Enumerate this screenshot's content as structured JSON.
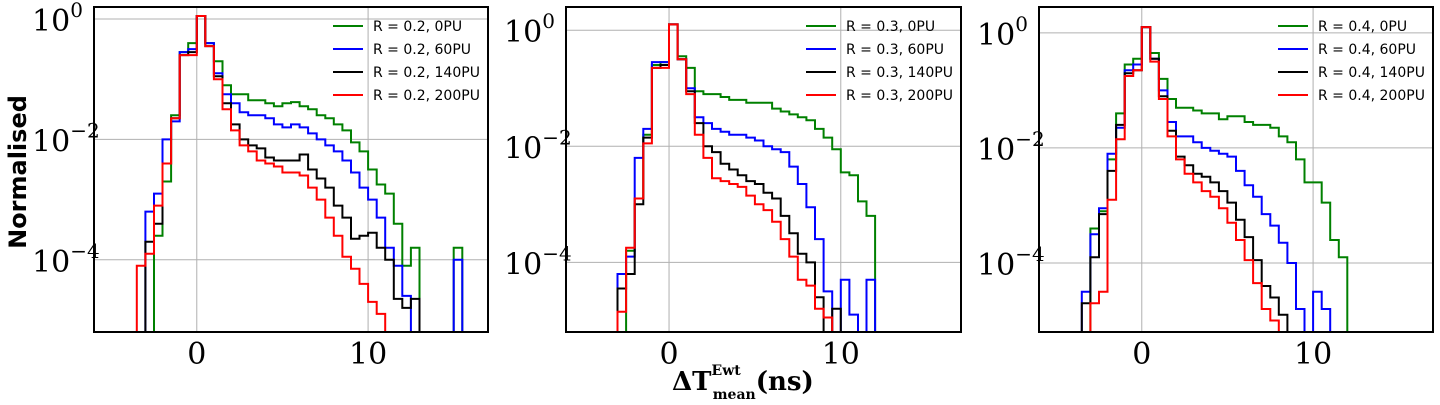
{
  "figure": {
    "ylabel": "Normalised",
    "xlabel": {
      "base": "ΔT",
      "sup": "Ewt",
      "sub": "mean",
      "unit": "(ns)"
    }
  },
  "chart_data": [
    {
      "type": "line",
      "title": "",
      "xlim": [
        -6,
        17
      ],
      "ylim_log10": [
        -5.2,
        0.2
      ],
      "xticks": [
        0,
        10
      ],
      "xtick_labels": [
        "0",
        "10"
      ],
      "yticks": [
        {
          "base": "10",
          "exp": "0",
          "log10": 0
        },
        {
          "base": "10",
          "exp": "−2",
          "log10": -2
        },
        {
          "base": "10",
          "exp": "−4",
          "log10": -4
        }
      ],
      "grid": true,
      "legend": "top-right",
      "bin_edges": [
        -4,
        -3.5,
        -3,
        -2.5,
        -2,
        -1.5,
        -1,
        -0.5,
        0,
        0.5,
        1,
        1.5,
        2,
        2.5,
        3,
        3.5,
        4,
        4.5,
        5,
        5.5,
        6,
        6.5,
        7,
        7.5,
        8,
        8.5,
        9,
        9.5,
        10,
        10.5,
        11,
        11.5,
        12,
        12.5,
        13,
        13.5,
        14,
        14.5,
        15,
        15.5
      ],
      "series": [
        {
          "name": "R = 0.2, 0PU",
          "color": "#008000",
          "log10": [
            null,
            null,
            null,
            -3.6,
            -2.7,
            -1.6,
            -0.55,
            -0.4,
            0.05,
            -0.4,
            -0.7,
            -1.1,
            -1.25,
            -1.25,
            -1.35,
            -1.35,
            -1.4,
            -1.45,
            -1.4,
            -1.38,
            -1.45,
            -1.5,
            -1.6,
            -1.65,
            -1.75,
            -1.85,
            -2.05,
            -2.2,
            -2.5,
            -2.75,
            -2.9,
            -3.4,
            -4.1,
            -3.8,
            null,
            null,
            null,
            null,
            -3.8,
            null
          ]
        },
        {
          "name": "R = 0.2, 60PU",
          "color": "#0000ff",
          "log10": [
            null,
            null,
            -3.2,
            -2.9,
            -2.0,
            -1.7,
            -0.55,
            -0.5,
            0.05,
            -0.4,
            -0.9,
            -1.25,
            -1.4,
            -1.55,
            -1.6,
            -1.6,
            -1.65,
            -1.75,
            -1.8,
            -1.75,
            -1.8,
            -1.9,
            -2.0,
            -2.1,
            -2.2,
            -2.35,
            -2.55,
            -2.8,
            -3.0,
            -3.3,
            -3.8,
            -4.1,
            -4.6,
            null,
            null,
            null,
            null,
            null,
            -4.0,
            null
          ]
        },
        {
          "name": "R = 0.2, 140PU",
          "color": "#000000",
          "log10": [
            null,
            null,
            -3.7,
            -3.4,
            -2.4,
            -1.65,
            -0.6,
            -0.55,
            0.05,
            -0.45,
            -0.95,
            -1.4,
            -1.75,
            -2.0,
            -2.1,
            -2.15,
            -2.3,
            -2.35,
            -2.35,
            -2.35,
            -2.25,
            -2.5,
            -2.65,
            -2.8,
            -3.1,
            -3.3,
            -3.65,
            -3.6,
            -3.55,
            -3.8,
            -4.0,
            -4.65,
            -4.8,
            -4.65,
            null,
            null,
            null,
            null,
            null,
            null
          ]
        },
        {
          "name": "R = 0.2, 200PU",
          "color": "#ff0000",
          "log10": [
            null,
            -4.1,
            -3.9,
            -3.1,
            -2.4,
            -1.65,
            -0.6,
            -0.6,
            0.05,
            -0.45,
            -1.0,
            -1.5,
            -1.85,
            -2.1,
            -2.2,
            -2.35,
            -2.4,
            -2.45,
            -2.55,
            -2.55,
            -2.6,
            -2.8,
            -3.0,
            -3.3,
            -3.6,
            -3.95,
            -4.15,
            -4.4,
            -4.7,
            -4.9,
            null,
            null,
            null,
            null,
            null,
            null,
            null,
            null,
            null,
            null
          ]
        }
      ]
    },
    {
      "type": "line",
      "title": "",
      "xlim": [
        -6,
        17
      ],
      "ylim_log10": [
        -5.2,
        0.4
      ],
      "xticks": [
        0,
        10
      ],
      "xtick_labels": [
        "0",
        "10"
      ],
      "yticks": [
        {
          "base": "10",
          "exp": "0",
          "log10": 0
        },
        {
          "base": "10",
          "exp": "−2",
          "log10": -2
        },
        {
          "base": "10",
          "exp": "−4",
          "log10": -4
        }
      ],
      "grid": true,
      "legend": "top-right",
      "bin_edges": [
        -4,
        -3.5,
        -3,
        -2.5,
        -2,
        -1.5,
        -1,
        -0.5,
        0,
        0.5,
        1,
        1.5,
        2,
        2.5,
        3,
        3.5,
        4,
        4.5,
        5,
        5.5,
        6,
        6.5,
        7,
        7.5,
        8,
        8.5,
        9,
        9.5,
        10,
        10.5,
        11,
        11.5,
        12,
        12.5,
        13,
        13.5,
        14,
        14.5,
        15,
        15.5
      ],
      "series": [
        {
          "name": "R = 0.3, 0PU",
          "color": "#008000",
          "log10": [
            null,
            null,
            null,
            -3.8,
            -2.9,
            -1.8,
            -0.6,
            -0.55,
            0.1,
            -0.45,
            -0.65,
            -1.05,
            -1.1,
            -1.1,
            -1.15,
            -1.2,
            -1.2,
            -1.25,
            -1.25,
            -1.25,
            -1.35,
            -1.4,
            -1.45,
            -1.5,
            -1.55,
            -1.7,
            -1.85,
            -2.05,
            -2.45,
            -2.5,
            -2.95,
            -3.2,
            null,
            null,
            null,
            null,
            null,
            null,
            null,
            null
          ]
        },
        {
          "name": "R = 0.3, 60PU",
          "color": "#0000ff",
          "log10": [
            null,
            null,
            -4.2,
            -3.9,
            -2.2,
            -1.7,
            -0.55,
            -0.55,
            0.1,
            -0.5,
            -1.0,
            -1.5,
            -1.6,
            -1.7,
            -1.75,
            -1.8,
            -1.8,
            -1.85,
            -1.9,
            -2.0,
            -2.05,
            -2.1,
            -2.35,
            -2.65,
            -3.05,
            -3.6,
            -4.5,
            null,
            -4.3,
            -4.9,
            null,
            -4.3,
            null,
            null,
            null,
            null,
            null,
            null,
            null,
            null
          ]
        },
        {
          "name": "R = 0.3, 140PU",
          "color": "#000000",
          "log10": [
            null,
            null,
            -4.45,
            -4.2,
            -3.0,
            -1.85,
            -0.65,
            -0.6,
            0.1,
            -0.5,
            -1.05,
            -1.6,
            -2.0,
            -2.1,
            -2.3,
            -2.4,
            -2.5,
            -2.6,
            -2.65,
            -2.8,
            -2.9,
            -3.2,
            -3.5,
            -3.85,
            -4.0,
            -4.6,
            null,
            -4.8,
            null,
            null,
            null,
            null,
            null,
            null,
            null,
            null,
            null,
            null,
            null,
            null
          ]
        },
        {
          "name": "R = 0.3, 200PU",
          "color": "#ff0000",
          "log10": [
            null,
            null,
            -4.85,
            -3.75,
            -2.9,
            -1.95,
            -0.65,
            -0.65,
            0.1,
            -0.5,
            -1.1,
            -1.8,
            -2.2,
            -2.55,
            -2.6,
            -2.65,
            -2.7,
            -2.85,
            -3.0,
            -3.1,
            -3.3,
            -3.6,
            -3.9,
            -4.3,
            -4.4,
            -4.8,
            -4.95,
            null,
            null,
            null,
            null,
            null,
            null,
            null,
            null,
            null,
            null,
            null,
            null,
            null
          ]
        }
      ]
    },
    {
      "type": "line",
      "title": "",
      "xlim": [
        -6,
        17
      ],
      "ylim_log10": [
        -5.2,
        0.45
      ],
      "xticks": [
        0,
        10
      ],
      "xtick_labels": [
        "0",
        "10"
      ],
      "yticks": [
        {
          "base": "10",
          "exp": "0",
          "log10": 0
        },
        {
          "base": "10",
          "exp": "−2",
          "log10": -2
        },
        {
          "base": "10",
          "exp": "−4",
          "log10": -4
        }
      ],
      "grid": true,
      "legend": "top-right",
      "bin_edges": [
        -4,
        -3.5,
        -3,
        -2.5,
        -2,
        -1.5,
        -1,
        -0.5,
        0,
        0.5,
        1,
        1.5,
        2,
        2.5,
        3,
        3.5,
        4,
        4.5,
        5,
        5.5,
        6,
        6.5,
        7,
        7.5,
        8,
        8.5,
        9,
        9.5,
        10,
        10.5,
        11,
        11.5,
        12,
        12.5,
        13,
        13.5,
        14,
        14.5,
        15,
        15.5
      ],
      "series": [
        {
          "name": "R = 0.4, 0PU",
          "color": "#008000",
          "log10": [
            null,
            null,
            -3.4,
            -3.1,
            -2.2,
            -1.4,
            -0.55,
            -0.45,
            0.1,
            -0.35,
            -0.8,
            -1.15,
            -1.3,
            -1.3,
            -1.35,
            -1.4,
            -1.4,
            -1.5,
            -1.45,
            -1.45,
            -1.55,
            -1.6,
            -1.6,
            -1.65,
            -1.8,
            -1.9,
            -2.2,
            -2.6,
            -2.6,
            -2.95,
            -3.6,
            -3.9,
            null,
            null,
            null,
            null,
            null,
            null,
            null,
            null
          ]
        },
        {
          "name": "R = 0.4, 60PU",
          "color": "#0000ff",
          "log10": [
            null,
            -4.5,
            -3.5,
            -3.05,
            -2.1,
            -1.65,
            -0.65,
            -0.55,
            0.1,
            -0.45,
            -1.0,
            -1.55,
            -1.8,
            -1.8,
            -1.9,
            -2.0,
            -2.05,
            -2.1,
            -2.15,
            -2.4,
            -2.65,
            -2.85,
            -3.15,
            -3.35,
            -3.65,
            -4.0,
            -4.8,
            null,
            -4.5,
            -4.8,
            null,
            null,
            null,
            null,
            null,
            null,
            null,
            null,
            null,
            null
          ]
        },
        {
          "name": "R = 0.4, 140PU",
          "color": "#000000",
          "log10": [
            null,
            -4.7,
            -3.9,
            -3.15,
            -2.4,
            -1.6,
            -0.7,
            -0.65,
            0.1,
            -0.45,
            -1.1,
            -1.7,
            -2.15,
            -2.3,
            -2.45,
            -2.5,
            -2.6,
            -2.75,
            -2.95,
            -3.25,
            -3.55,
            -3.95,
            -4.4,
            -4.6,
            -4.9,
            null,
            null,
            null,
            null,
            null,
            null,
            null,
            null,
            null,
            null,
            null,
            null,
            null,
            null,
            null
          ]
        },
        {
          "name": "R = 0.4, 200PU",
          "color": "#ff0000",
          "log10": [
            null,
            null,
            -4.7,
            -4.5,
            -2.9,
            -1.85,
            -0.75,
            -0.65,
            0.1,
            -0.5,
            -1.15,
            -1.8,
            -2.2,
            -2.45,
            -2.6,
            -2.75,
            -2.85,
            -3.05,
            -3.3,
            -3.6,
            -3.95,
            -4.35,
            -4.8,
            -5.0,
            null,
            null,
            null,
            null,
            null,
            null,
            null,
            null,
            null,
            null,
            null,
            null,
            null,
            null,
            null,
            null
          ]
        }
      ]
    }
  ]
}
